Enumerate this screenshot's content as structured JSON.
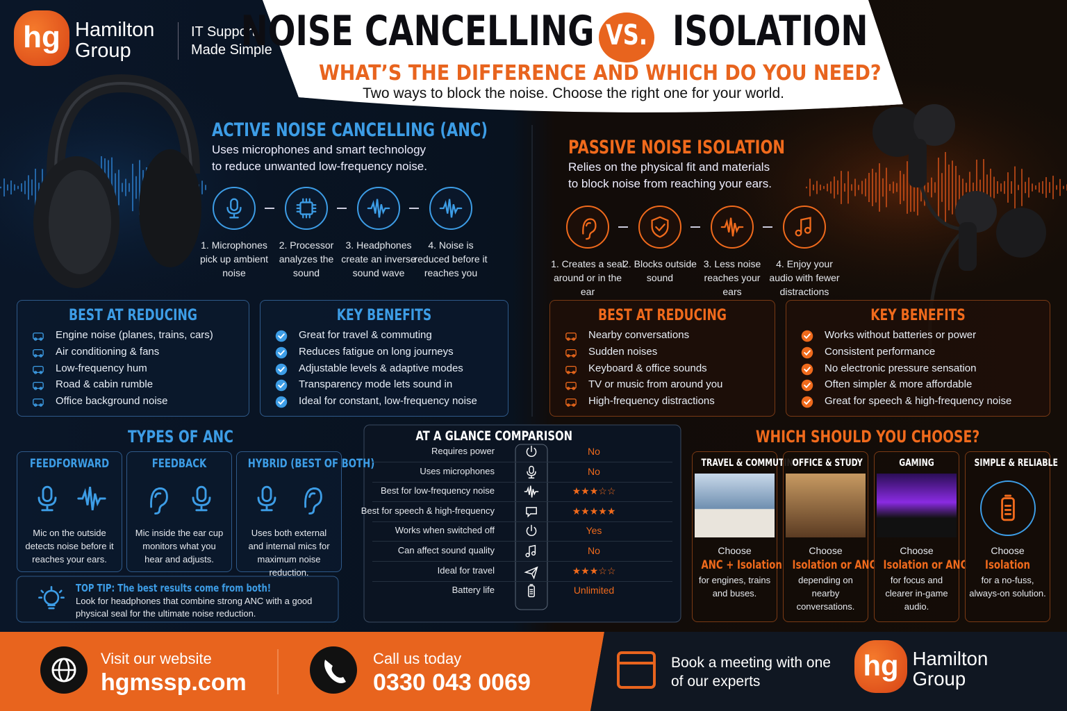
{
  "header": {
    "logo": {
      "mark": "hg",
      "name_line1": "Hamilton",
      "name_line2": "Group"
    },
    "tagline_line1": "IT Support",
    "tagline_line2": "Made Simple",
    "title_part1": "NOISE CANCELLING",
    "title_vs": "VS.",
    "title_part2": "ISOLATION",
    "subtitle": "WHAT’S THE DIFFERENCE AND WHICH DO YOU NEED?",
    "intro": "Two ways to block the noise. Choose the right one for your world."
  },
  "anc": {
    "heading": "ACTIVE NOISE CANCELLING (ANC)",
    "description_lines": [
      "Uses microphones and smart technology",
      "to reduce unwanted low-frequency noise."
    ],
    "steps": [
      "1. Microphones pick up ambient noise",
      "2. Processor analyzes the sound",
      "3. Headphones create an inverse sound wave",
      "4. Noise is reduced before it reaches you"
    ],
    "best_at_reducing": {
      "heading": "BEST AT REDUCING",
      "items": [
        "Engine noise (planes, trains, cars)",
        "Air conditioning & fans",
        "Low-frequency hum",
        "Road & cabin rumble",
        "Office background noise"
      ]
    },
    "key_benefits": {
      "heading": "KEY BENEFITS",
      "items": [
        "Great for travel & commuting",
        "Reduces fatigue on long journeys",
        "Adjustable levels & adaptive modes",
        "Transparency mode lets sound in",
        "Ideal for constant, low-frequency noise"
      ]
    }
  },
  "isolation": {
    "heading": "PASSIVE NOISE ISOLATION",
    "description_lines": [
      "Relies on the physical fit and materials",
      "to block noise from reaching your ears."
    ],
    "steps": [
      "1. Creates a seal around or in the ear",
      "2. Blocks outside sound",
      "3. Less noise reaches your ears",
      "4. Enjoy your audio with fewer distractions"
    ],
    "best_at_reducing": {
      "heading": "BEST AT REDUCING",
      "items": [
        "Nearby conversations",
        "Sudden noises",
        "Keyboard & office sounds",
        "TV or music from around you",
        "High-frequency distractions"
      ]
    },
    "key_benefits": {
      "heading": "KEY BENEFITS",
      "items": [
        "Works without batteries or power",
        "Consistent performance",
        "No electronic pressure sensation",
        "Often simpler & more affordable",
        "Great for speech & high-frequency noise"
      ]
    }
  },
  "types_of_anc": {
    "heading": "TYPES OF ANC",
    "types": [
      {
        "name": "FEEDFORWARD",
        "description": "Mic on the outside detects noise before it reaches your ears."
      },
      {
        "name": "FEEDBACK",
        "description": "Mic inside the ear cup monitors what you hear and adjusts."
      },
      {
        "name": "HYBRID (BEST OF BOTH)",
        "description": "Uses both external and internal mics for maximum noise reduction."
      }
    ],
    "tip": {
      "label": "TOP TIP: The best results come from both!",
      "text": "Look for headphones that combine strong ANC with a good physical seal for the ultimate noise reduction."
    }
  },
  "comparison": {
    "heading": "AT A GLANCE COMPARISON",
    "rows": [
      [
        "Requires power",
        "No"
      ],
      [
        "Uses microphones",
        "No"
      ],
      [
        "Best for low-frequency noise",
        "★★★☆☆"
      ],
      [
        "Best for speech & high-frequency",
        "★★★★★"
      ],
      [
        "Works when switched off",
        "Yes"
      ],
      [
        "Can affect sound quality",
        "No"
      ],
      [
        "Ideal for travel",
        "★★★☆☆"
      ],
      [
        "Battery life",
        "Unlimited"
      ]
    ]
  },
  "choose": {
    "heading": "WHICH SHOULD YOU CHOOSE?",
    "options": [
      {
        "name": "TRAVEL & COMMUTING",
        "prefix": "Choose",
        "choice": "ANC + Isolation",
        "detail": "for engines, trains and buses."
      },
      {
        "name": "OFFICE & STUDY",
        "prefix": "Choose",
        "choice": "Isolation or ANC",
        "detail": "depending on nearby conversations."
      },
      {
        "name": "GAMING",
        "prefix": "Choose",
        "choice": "Isolation or ANC",
        "detail": "for focus and clearer in-game audio."
      },
      {
        "name": "SIMPLE & RELIABLE",
        "prefix": "Choose",
        "choice": "Isolation",
        "detail": "for a no-fuss, always-on solution."
      }
    ]
  },
  "footer": {
    "website_label": "Visit our website",
    "website": "hgmssp.com",
    "phone_label": "Call us today",
    "phone": "0330 043 0069",
    "meeting": "Book a meeting with one of our experts",
    "logo": {
      "mark": "hg",
      "name_line1": "Hamilton",
      "name_line2": "Group"
    }
  }
}
